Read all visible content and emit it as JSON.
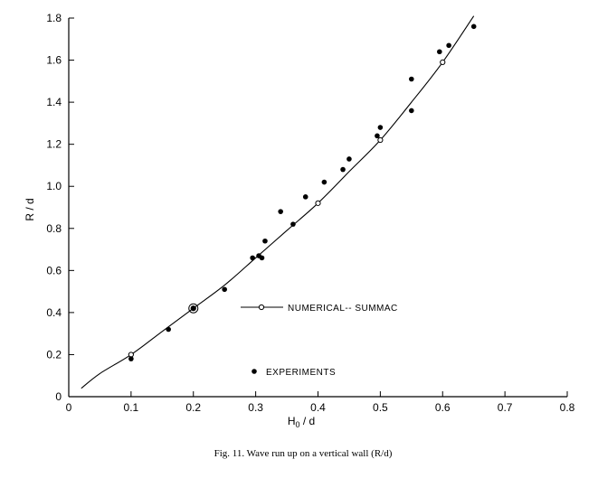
{
  "chart_data": {
    "type": "scatter",
    "xlabel_main": "H",
    "xlabel_sub": "0",
    "xlabel_rest": " / d",
    "ylabel": "R / d",
    "xlim": [
      0,
      0.8
    ],
    "ylim": [
      0,
      1.8
    ],
    "xticks": [
      0,
      0.1,
      0.2,
      0.3,
      0.4,
      0.5,
      0.6,
      0.7,
      0.8
    ],
    "xtick_labels": [
      "0",
      "0.1",
      "0.2",
      "0.3",
      "0.4",
      "0.5",
      "0.6",
      "0.7",
      "0.8"
    ],
    "yticks": [
      0,
      0.2,
      0.4,
      0.6,
      0.8,
      1.0,
      1.2,
      1.4,
      1.6,
      1.8
    ],
    "ytick_labels": [
      "0",
      "0.2",
      "0.4",
      "0.6",
      "0.8",
      "1.0",
      "1.2",
      "1.4",
      "1.6",
      "1.8"
    ],
    "grid": false,
    "caption": "Fig. 11.   Wave run up on a vertical wall (R/d)",
    "series": [
      {
        "name": "NUMERICAL-- SUMMAC",
        "kind": "curve_with_open_markers",
        "curve": {
          "x": [
            0.02,
            0.05,
            0.1,
            0.15,
            0.2,
            0.25,
            0.3,
            0.35,
            0.4,
            0.45,
            0.5,
            0.55,
            0.6,
            0.65
          ],
          "y": [
            0.04,
            0.11,
            0.2,
            0.31,
            0.42,
            0.53,
            0.66,
            0.79,
            0.92,
            1.07,
            1.22,
            1.4,
            1.59,
            1.81
          ]
        },
        "markers": {
          "x": [
            0.1,
            0.2,
            0.4,
            0.5,
            0.6
          ],
          "y": [
            0.2,
            0.42,
            0.92,
            1.22,
            1.59
          ]
        }
      },
      {
        "name": "EXPERIMENTS",
        "kind": "filled_markers",
        "x": [
          0.1,
          0.16,
          0.2,
          0.25,
          0.295,
          0.305,
          0.31,
          0.315,
          0.34,
          0.36,
          0.38,
          0.41,
          0.44,
          0.45,
          0.495,
          0.5,
          0.55,
          0.55,
          0.595,
          0.61,
          0.65
        ],
        "y": [
          0.18,
          0.32,
          0.42,
          0.51,
          0.66,
          0.67,
          0.66,
          0.74,
          0.88,
          0.82,
          0.95,
          1.02,
          1.08,
          1.13,
          1.24,
          1.28,
          1.51,
          1.36,
          1.64,
          1.67,
          1.76
        ]
      }
    ]
  }
}
